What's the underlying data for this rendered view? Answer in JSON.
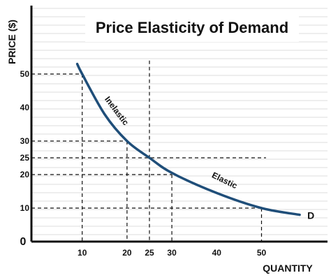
{
  "chart_data": {
    "type": "line",
    "title": "Price Elasticity of Demand",
    "xlabel": "QUANTITY",
    "ylabel": "PRICE ($)",
    "origin_label": "0",
    "xlim": [
      0,
      62
    ],
    "ylim": [
      0,
      57
    ],
    "x_ticks": [
      10,
      20,
      25,
      30,
      40,
      50
    ],
    "y_ticks": [
      10,
      20,
      25,
      30,
      40,
      50
    ],
    "grid": true,
    "colors": {
      "curve": "#1f4e79",
      "guide": "#111111",
      "grid": "#dcdcdc",
      "axis": "#111111"
    },
    "series": [
      {
        "name": "D",
        "values": [
          {
            "x": 8.9,
            "y": 53
          },
          {
            "x": 10,
            "y": 50
          },
          {
            "x": 15,
            "y": 38
          },
          {
            "x": 20,
            "y": 30
          },
          {
            "x": 25,
            "y": 25
          },
          {
            "x": 30,
            "y": 20.5
          },
          {
            "x": 40,
            "y": 14.5
          },
          {
            "x": 50,
            "y": 10
          },
          {
            "x": 58.5,
            "y": 8
          }
        ]
      }
    ],
    "annotations": [
      {
        "text": "Inelastic",
        "at_x": 17.2,
        "at_y": 38.5,
        "angle": 53
      },
      {
        "text": "Elastic",
        "at_x": 41.5,
        "at_y": 17.5,
        "angle": 26
      }
    ],
    "guides": [
      {
        "type": "v",
        "x": 10,
        "y_from": 0,
        "y_to": 50
      },
      {
        "type": "h",
        "y": 50,
        "x_from": 0,
        "x_to": 10
      },
      {
        "type": "v",
        "x": 20,
        "y_from": 0,
        "y_to": 30
      },
      {
        "type": "h",
        "y": 30,
        "x_from": 0,
        "x_to": 20
      },
      {
        "type": "v",
        "x": 25,
        "y_from": 0,
        "y_to": 54
      },
      {
        "type": "h",
        "y": 25,
        "x_from": 0,
        "x_to": 51
      },
      {
        "type": "v",
        "x": 30,
        "y_from": 0,
        "y_to": 20
      },
      {
        "type": "h",
        "y": 20,
        "x_from": 0,
        "x_to": 30
      },
      {
        "type": "v",
        "x": 50,
        "y_from": 0,
        "y_to": 10
      },
      {
        "type": "h",
        "y": 10,
        "x_from": 0,
        "x_to": 50
      }
    ]
  }
}
